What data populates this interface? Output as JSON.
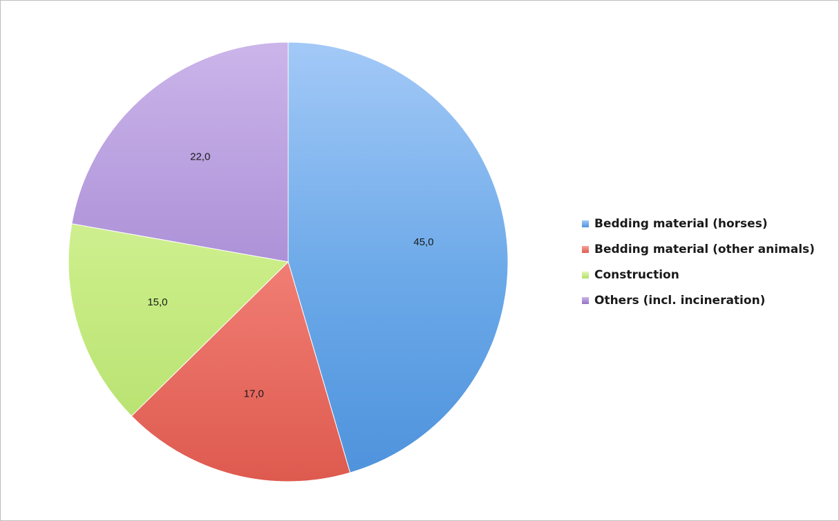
{
  "chart_data": {
    "type": "pie",
    "title": "",
    "start_angle_deg": 0,
    "direction": "clockwise",
    "legend_position": "right",
    "slices": [
      {
        "label": "Bedding material (horses)",
        "value": 45.0,
        "display": "45,0",
        "color": "#6aa8e8",
        "color_light": "#a3c9f7",
        "color_dark": "#4e92dc"
      },
      {
        "label": "Bedding material (other animals)",
        "value": 17.0,
        "display": "17,0",
        "color": "#ef7a70",
        "color_light": "#f6a39a",
        "color_dark": "#de5a4f"
      },
      {
        "label": "Construction",
        "value": 15.0,
        "display": "15,0",
        "color": "#c8ec84",
        "color_light": "#e2f7b3",
        "color_dark": "#b2de6a"
      },
      {
        "label": "Others (incl. incineration)",
        "value": 22.0,
        "display": "22,0",
        "color": "#aa8ed6",
        "color_light": "#cbb5ea",
        "color_dark": "#9273c2"
      }
    ]
  }
}
